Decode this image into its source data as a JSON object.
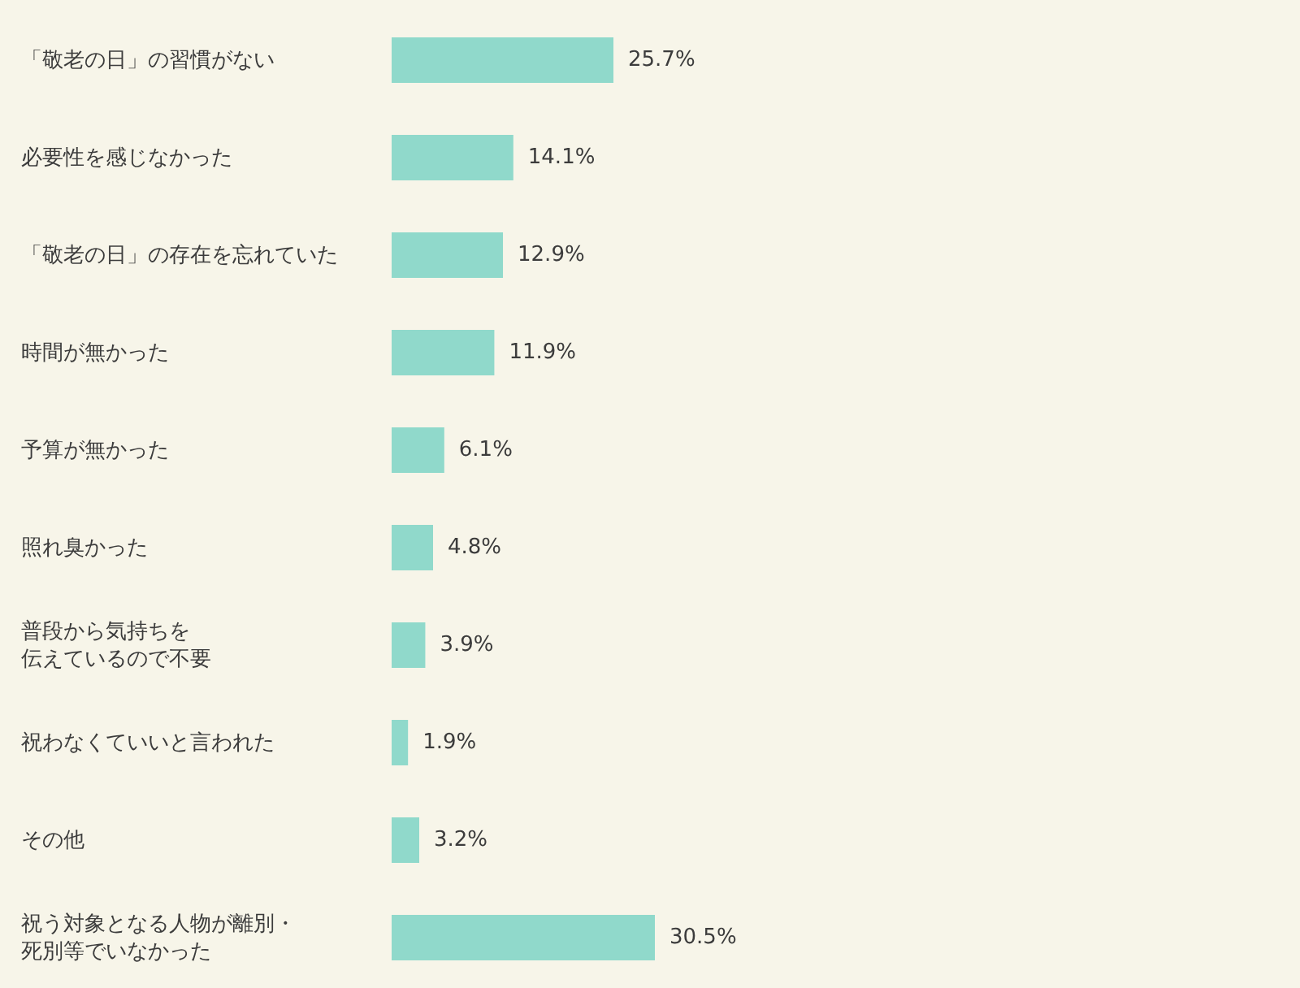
{
  "chart_data": {
    "type": "bar",
    "orientation": "horizontal",
    "categories": [
      "「敬老の日」の習慣がない",
      "必要性を感じなかった",
      "「敬老の日」の存在を忘れていた",
      "時間が無かった",
      "予算が無かった",
      "照れ臭かった",
      "普段から気持ちを伝えているので不要",
      "祝わなくていいと言われた",
      "その他",
      "祝う対象となる人物が離別・死別等でいなかった"
    ],
    "values": [
      25.7,
      14.1,
      12.9,
      11.9,
      6.1,
      4.8,
      3.9,
      1.9,
      3.2,
      30.5
    ],
    "color": "#90d9cb",
    "value_labels": [
      "25.7%",
      "14.1%",
      "12.9%",
      "11.9%",
      "6.1%",
      "4.8%",
      "3.9%",
      "1.9%",
      "3.2%",
      "30.5%"
    ]
  }
}
